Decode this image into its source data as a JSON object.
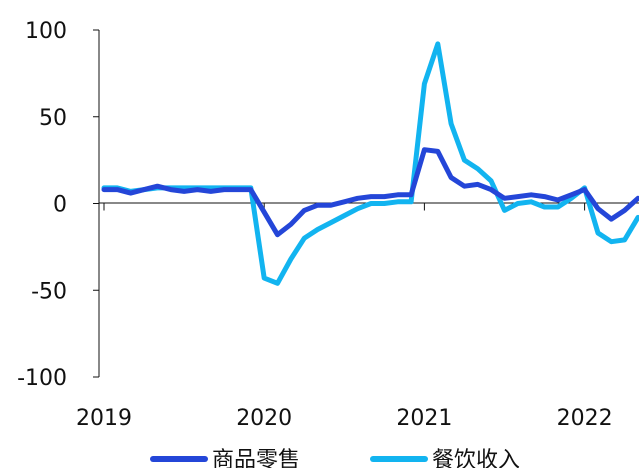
{
  "chart_data": {
    "type": "line",
    "x": [
      "2019-01",
      "2019-02",
      "2019-03",
      "2019-04",
      "2019-05",
      "2019-06",
      "2019-07",
      "2019-08",
      "2019-09",
      "2019-10",
      "2019-11",
      "2019-12",
      "2020-01",
      "2020-02",
      "2020-03",
      "2020-04",
      "2020-05",
      "2020-06",
      "2020-07",
      "2020-08",
      "2020-09",
      "2020-10",
      "2020-11",
      "2020-12",
      "2021-01",
      "2021-02",
      "2021-03",
      "2021-04",
      "2021-05",
      "2021-06",
      "2021-07",
      "2021-08",
      "2021-09",
      "2021-10",
      "2021-11",
      "2021-12",
      "2022-01",
      "2022-02",
      "2022-03",
      "2022-04",
      "2022-05"
    ],
    "x_tick_labels": [
      "2019",
      "2020",
      "2021",
      "2022"
    ],
    "y_ticks": [
      100,
      50,
      0,
      -50,
      -100
    ],
    "y_tick_labels": [
      "100",
      "50",
      "0",
      "-50",
      "-100"
    ],
    "ylim": [
      -100,
      100
    ],
    "series": [
      {
        "name": "商品零售",
        "color": "#2446d8",
        "values": [
          8,
          8,
          6,
          8,
          10,
          8,
          7,
          8,
          7,
          8,
          8,
          8,
          -5,
          -18,
          -12,
          -4,
          -1,
          -1,
          1,
          3,
          4,
          4,
          5,
          5,
          31,
          30,
          15,
          10,
          11,
          8,
          3,
          4,
          5,
          4,
          2,
          5,
          8,
          -3,
          -9,
          -4,
          3
        ]
      },
      {
        "name": "餐饮收入",
        "color": "#12b4f0",
        "values": [
          9,
          9,
          7,
          8,
          9,
          9,
          9,
          9,
          9,
          9,
          9,
          9,
          -43,
          -46,
          -32,
          -20,
          -15,
          -11,
          -7,
          -3,
          0,
          0,
          1,
          1,
          69,
          92,
          46,
          25,
          20,
          13,
          -4,
          0,
          1,
          -2,
          -2,
          3,
          9,
          -17,
          -22,
          -21,
          -8
        ]
      }
    ]
  }
}
